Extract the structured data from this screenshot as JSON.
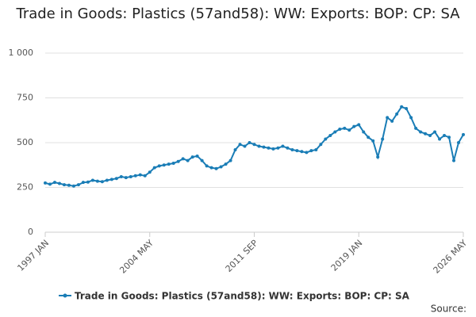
{
  "chart_data": {
    "type": "line",
    "title": "Trade in Goods: Plastics (57and58): WW: Exports: BOP: CP: SA",
    "source": "Source:",
    "x": [
      "1997 JAN",
      "1997 MAY",
      "1997 SEP",
      "1998 JAN",
      "1998 MAY",
      "1998 SEP",
      "1999 JAN",
      "1999 MAY",
      "1999 SEP",
      "2000 JAN",
      "2000 MAY",
      "2000 SEP",
      "2001 JAN",
      "2001 MAY",
      "2001 SEP",
      "2002 JAN",
      "2002 MAY",
      "2002 SEP",
      "2003 JAN",
      "2003 MAY",
      "2003 SEP",
      "2004 JAN",
      "2004 MAY",
      "2004 SEP",
      "2005 JAN",
      "2005 MAY",
      "2005 SEP",
      "2006 JAN",
      "2006 MAY",
      "2006 SEP",
      "2007 JAN",
      "2007 MAY",
      "2007 SEP",
      "2008 JAN",
      "2008 MAY",
      "2008 SEP",
      "2009 JAN",
      "2009 MAY",
      "2009 SEP",
      "2010 JAN",
      "2010 MAY",
      "2010 SEP",
      "2011 JAN",
      "2011 MAY",
      "2011 SEP",
      "2012 JAN",
      "2012 MAY",
      "2012 SEP",
      "2013 JAN",
      "2013 MAY",
      "2013 SEP",
      "2014 JAN",
      "2014 MAY",
      "2014 SEP",
      "2015 JAN",
      "2015 MAY",
      "2015 SEP",
      "2016 JAN",
      "2016 MAY",
      "2016 SEP",
      "2017 JAN",
      "2017 MAY",
      "2017 SEP",
      "2018 JAN",
      "2018 MAY",
      "2018 SEP",
      "2019 JAN",
      "2019 MAY",
      "2019 SEP",
      "2020 JAN",
      "2020 MAY",
      "2020 SEP",
      "2021 JAN",
      "2021 MAY",
      "2021 SEP",
      "2022 JAN",
      "2022 MAY",
      "2022 SEP",
      "2023 JAN",
      "2023 MAY",
      "2023 SEP",
      "2024 JAN",
      "2024 MAY",
      "2024 SEP",
      "2025 JAN",
      "2025 MAY",
      "2025 SEP",
      "2026 JAN",
      "2026 MAY"
    ],
    "series": [
      {
        "name": "Trade in Goods: Plastics (57and58): WW: Exports: BOP: CP: SA",
        "color": "#1a7db6",
        "values": [
          275,
          268,
          278,
          272,
          265,
          262,
          258,
          265,
          278,
          280,
          290,
          285,
          282,
          290,
          295,
          300,
          310,
          305,
          310,
          315,
          320,
          315,
          335,
          360,
          370,
          375,
          380,
          385,
          395,
          410,
          400,
          420,
          425,
          400,
          370,
          360,
          355,
          365,
          380,
          400,
          460,
          490,
          480,
          500,
          490,
          480,
          475,
          470,
          465,
          470,
          480,
          470,
          460,
          455,
          450,
          445,
          455,
          460,
          490,
          520,
          540,
          560,
          575,
          580,
          570,
          590,
          600,
          560,
          530,
          510,
          420,
          520,
          640,
          620,
          660,
          700,
          690,
          640,
          580,
          560,
          550,
          540,
          560,
          520,
          540,
          530,
          400,
          500,
          545
        ]
      }
    ],
    "xticks": [
      "1997 JAN",
      "2004 MAY",
      "2011 SEP",
      "2019 JAN",
      "2026 MAY"
    ],
    "ylim": [
      0,
      1000
    ],
    "yticks": [
      0,
      250,
      500,
      750,
      {
        "value": 1000,
        "label": "1 000"
      }
    ],
    "grid": true
  }
}
